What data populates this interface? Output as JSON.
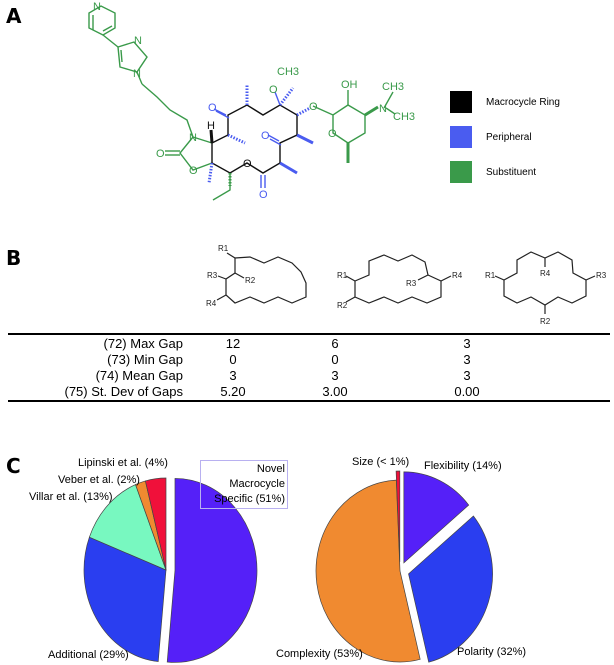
{
  "panels": {
    "a": "A",
    "b": "B",
    "c": "C"
  },
  "legend": [
    {
      "label": "Macrocycle Ring",
      "color": "#000000"
    },
    {
      "label": "Peripheral",
      "color": "#4a5cf0"
    },
    {
      "label": "Substituent",
      "color": "#3a9a4a"
    }
  ],
  "molecule_labels": {
    "n": "N",
    "h": "H",
    "o": "O",
    "ch3": "CH3",
    "oh": "OH"
  },
  "structures_b": {
    "r1": "R1",
    "r2": "R2",
    "r3": "R3",
    "r4": "R4"
  },
  "table": {
    "rows": [
      {
        "label": "(72) Max Gap",
        "values": [
          "12",
          "6",
          "3"
        ]
      },
      {
        "label": "(73) Min Gap",
        "values": [
          "0",
          "0",
          "3"
        ]
      },
      {
        "label": "(74) Mean Gap",
        "values": [
          "3",
          "3",
          "3"
        ]
      },
      {
        "label": "(75) St. Dev of Gaps",
        "values": [
          "5.20",
          "3.00",
          "0.00"
        ]
      }
    ]
  },
  "chart_data": [
    {
      "type": "pie",
      "slices": [
        {
          "label": "Novel Macrocycle Specific (51%)",
          "value": 51,
          "color": "#5520f8",
          "exploded": true
        },
        {
          "label": "Additional (29%)",
          "value": 29,
          "color": "#2a3ef0",
          "exploded": false
        },
        {
          "label": "Villar et al. (13%)",
          "value": 13,
          "color": "#78f8c0",
          "exploded": false
        },
        {
          "label": "Veber et al. (2%)",
          "value": 2,
          "color": "#f08a30",
          "exploded": false
        },
        {
          "label": "Lipinski et al. (4%)",
          "value": 4,
          "color": "#f0103a",
          "exploded": false
        }
      ]
    },
    {
      "type": "pie",
      "slices": [
        {
          "label": "Flexibility (14%)",
          "value": 14,
          "color": "#5520f8",
          "exploded": true
        },
        {
          "label": "Polarity (32%)",
          "value": 32,
          "color": "#2a3ef0",
          "exploded": true
        },
        {
          "label": "Complexity (53%)",
          "value": 53,
          "color": "#f08a30",
          "exploded": false
        },
        {
          "label": "Size (< 1%)",
          "value": 0.7,
          "color": "#f0103a",
          "exploded": true
        }
      ]
    }
  ]
}
